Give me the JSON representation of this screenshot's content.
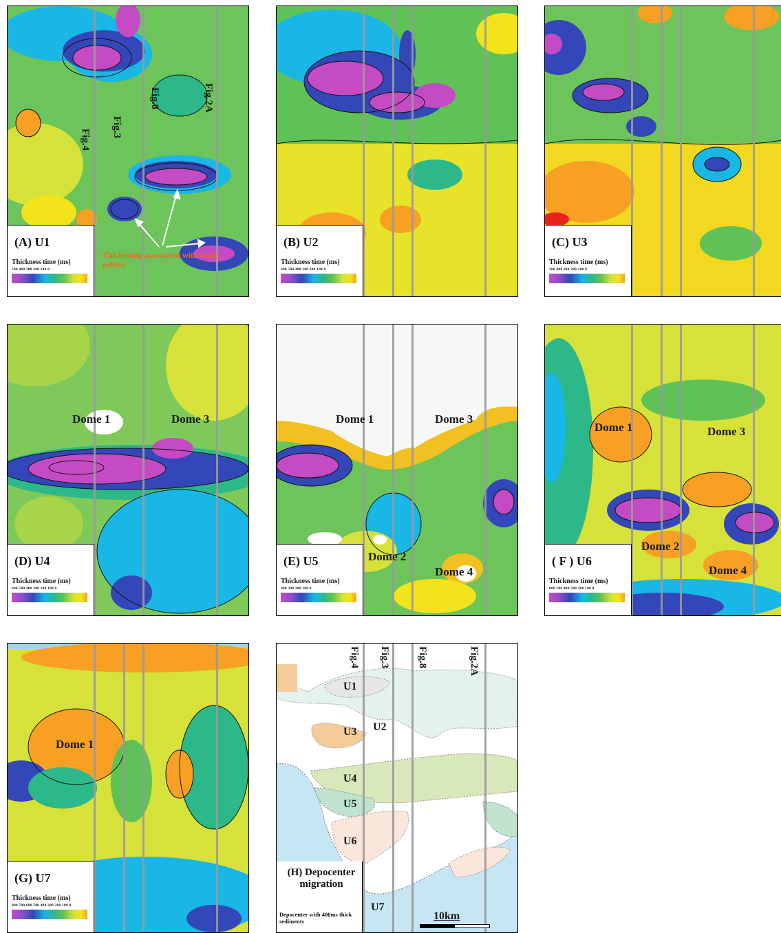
{
  "legend_title": "Thickness time (ms)",
  "panels": {
    "a": {
      "title": "(A) U1",
      "ticks": "500  400  300  200  100   0",
      "fig_labels": [
        "Fig.4",
        "Fig.3",
        "Fig.8",
        "Fig.2A"
      ],
      "annotation": "Thickening associated with shale rollers"
    },
    "b": {
      "title": "(B) U2",
      "ticks": "600  500  400  300  200  100   0"
    },
    "c": {
      "title": "(C) U3",
      "ticks": "500  400  300  200  100   0"
    },
    "d": {
      "title": "(D) U4",
      "ticks": "600  500  400  300  200  100   0",
      "domes": [
        "Dome 1",
        "Dome 3"
      ]
    },
    "e": {
      "title": "(E) U5",
      "ticks": "400    300    200    100    0",
      "domes": [
        "Dome 1",
        "Dome 3",
        "Dome 2",
        "Dome 4"
      ]
    },
    "f": {
      "title": "( F ) U6",
      "ticks": "600  500  400  300  200  100   0",
      "domes": [
        "Dome 1",
        "Dome 3",
        "Dome 2",
        "Dome 4"
      ]
    },
    "g": {
      "title": "(G) U7",
      "ticks": "800 700 600 500 400 300 200 100  0",
      "domes": [
        "Dome 1"
      ]
    },
    "h": {
      "title": "(H) Depocenter migration",
      "fig_labels": [
        "Fig.4",
        "Fig.3",
        "Fig.8",
        "Fig.2A"
      ],
      "units": [
        "U1",
        "U2",
        "U3",
        "U4",
        "U5",
        "U6",
        "U7"
      ],
      "note": "Depocenter with 400ms thick sediments",
      "scale": "10km"
    }
  },
  "colors": {
    "magenta": "#c44bc4",
    "blue": "#3347b8",
    "cyan": "#19b7e6",
    "green": "#5fc257",
    "yellow": "#f2e31c",
    "orange": "#f7a023",
    "red": "#e8231c",
    "annotation": "#f06a1a"
  }
}
